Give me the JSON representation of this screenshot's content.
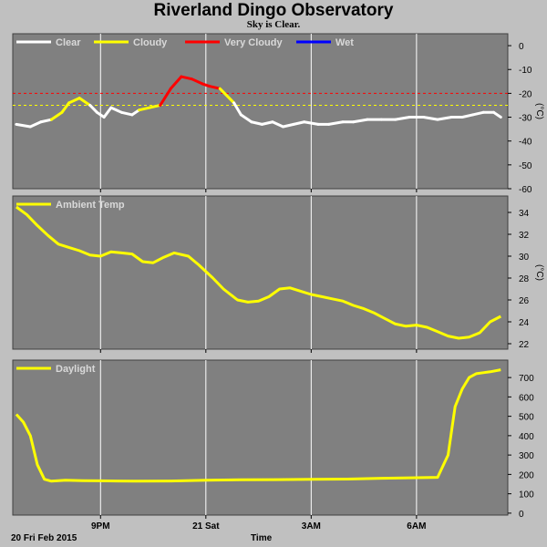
{
  "title": "Riverland Dingo Observatory",
  "subtitle": "Sky is Clear.",
  "footer": {
    "date": "20 Fri Feb 2015",
    "xlabel": "Time"
  },
  "x_ticks": [
    "9PM",
    "21 Sat",
    "3AM",
    "6AM"
  ],
  "colors": {
    "background": "#c0c0c0",
    "plot_bg": "#808080",
    "grid": "#ffffff",
    "clear": "#ffffff",
    "cloudy": "#ffff00",
    "very_cloudy": "#ff0000",
    "wet": "#0000ff",
    "series": "#ffff00"
  },
  "chart_data": [
    {
      "type": "line",
      "name": "sky",
      "legend": [
        {
          "label": "Clear",
          "color": "#ffffff"
        },
        {
          "label": "Cloudy",
          "color": "#ffff00"
        },
        {
          "label": "Very Cloudy",
          "color": "#ff0000"
        },
        {
          "label": "Wet",
          "color": "#0000ff"
        }
      ],
      "ylabel": "(°C)",
      "ylim": [
        -60,
        5
      ],
      "yticks": [
        0,
        -10,
        -20,
        -30,
        -40,
        -50,
        -60
      ],
      "thresholds": [
        {
          "value": -20,
          "color": "#ff0000"
        },
        {
          "value": -25,
          "color": "#ffff00"
        }
      ],
      "xlim": [
        18.5,
        32.6
      ],
      "x": [
        18.6,
        19.0,
        19.3,
        19.6,
        19.9,
        20.1,
        20.4,
        20.7,
        20.9,
        21.1,
        21.3,
        21.6,
        21.9,
        22.1,
        22.4,
        22.7,
        23.0,
        23.3,
        23.6,
        23.9,
        24.1,
        24.4,
        24.8,
        25.0,
        25.3,
        25.6,
        25.9,
        26.2,
        26.5,
        26.8,
        27.2,
        27.5,
        27.9,
        28.2,
        28.6,
        29.0,
        29.4,
        29.8,
        30.2,
        30.6,
        31.0,
        31.3,
        31.6,
        31.9,
        32.2,
        32.4
      ],
      "y": [
        -33,
        -34,
        -32,
        -31,
        -28,
        -24,
        -22,
        -25,
        -28,
        -30,
        -26,
        -28,
        -29,
        -27,
        -26,
        -25,
        -18,
        -13,
        -14,
        -16,
        -17,
        -18,
        -24,
        -29,
        -32,
        -33,
        -32,
        -34,
        -33,
        -32,
        -33,
        -33,
        -32,
        -32,
        -31,
        -31,
        -31,
        -30,
        -30,
        -31,
        -30,
        -30,
        -29,
        -28,
        -28,
        -30
      ],
      "status": [
        "Clear",
        "Clear",
        "Clear",
        "Clear",
        "Cloudy",
        "Cloudy",
        "Cloudy",
        "Cloudy",
        "Clear",
        "Clear",
        "Clear",
        "Clear",
        "Clear",
        "Clear",
        "Cloudy",
        "Cloudy",
        "Very Cloudy",
        "Very Cloudy",
        "Very Cloudy",
        "Very Cloudy",
        "Very Cloudy",
        "Very Cloudy",
        "Cloudy",
        "Clear",
        "Clear",
        "Clear",
        "Clear",
        "Clear",
        "Clear",
        "Clear",
        "Clear",
        "Clear",
        "Clear",
        "Clear",
        "Clear",
        "Clear",
        "Clear",
        "Clear",
        "Clear",
        "Clear",
        "Clear",
        "Clear",
        "Clear",
        "Clear",
        "Clear",
        "Clear"
      ]
    },
    {
      "type": "line",
      "name": "ambient",
      "legend": [
        {
          "label": "Ambient Temp",
          "color": "#ffff00"
        }
      ],
      "ylabel": "(°C)",
      "ylim": [
        21.5,
        35.5
      ],
      "yticks": [
        34,
        32,
        30,
        28,
        26,
        24,
        22
      ],
      "xlim": [
        18.5,
        32.6
      ],
      "x": [
        18.6,
        18.9,
        19.2,
        19.5,
        19.8,
        20.1,
        20.4,
        20.7,
        21.0,
        21.3,
        21.6,
        21.9,
        22.2,
        22.5,
        22.8,
        23.1,
        23.5,
        23.8,
        24.2,
        24.5,
        24.9,
        25.2,
        25.5,
        25.8,
        26.1,
        26.4,
        26.7,
        27.0,
        27.3,
        27.6,
        27.9,
        28.2,
        28.5,
        28.8,
        29.1,
        29.4,
        29.7,
        30.0,
        30.3,
        30.6,
        30.9,
        31.2,
        31.5,
        31.8,
        32.1,
        32.4
      ],
      "y": [
        34.5,
        33.8,
        32.8,
        31.9,
        31.1,
        30.8,
        30.5,
        30.1,
        30.0,
        30.4,
        30.3,
        30.2,
        29.5,
        29.4,
        29.9,
        30.3,
        30.0,
        29.2,
        28.0,
        27.0,
        26.0,
        25.8,
        25.9,
        26.3,
        27.0,
        27.1,
        26.8,
        26.5,
        26.3,
        26.1,
        25.9,
        25.5,
        25.2,
        24.8,
        24.3,
        23.8,
        23.6,
        23.7,
        23.5,
        23.1,
        22.7,
        22.5,
        22.6,
        23.0,
        24.0,
        24.5
      ]
    },
    {
      "type": "line",
      "name": "daylight",
      "legend": [
        {
          "label": "Daylight",
          "color": "#ffff00"
        }
      ],
      "ylabel": "",
      "ylim": [
        -10,
        790
      ],
      "yticks": [
        700,
        600,
        500,
        400,
        300,
        200,
        100,
        0
      ],
      "xlim": [
        18.5,
        32.6
      ],
      "x": [
        18.6,
        18.8,
        19.0,
        19.2,
        19.4,
        19.6,
        19.8,
        20.0,
        20.5,
        21.0,
        22.0,
        23.0,
        24.0,
        25.0,
        26.0,
        27.0,
        28.0,
        29.0,
        30.0,
        30.6,
        30.9,
        31.1,
        31.3,
        31.5,
        31.7,
        31.9,
        32.1,
        32.4
      ],
      "y": [
        510,
        470,
        400,
        250,
        175,
        165,
        168,
        170,
        168,
        167,
        165,
        166,
        170,
        172,
        173,
        175,
        176,
        180,
        183,
        185,
        300,
        550,
        640,
        700,
        720,
        725,
        730,
        740
      ]
    }
  ]
}
